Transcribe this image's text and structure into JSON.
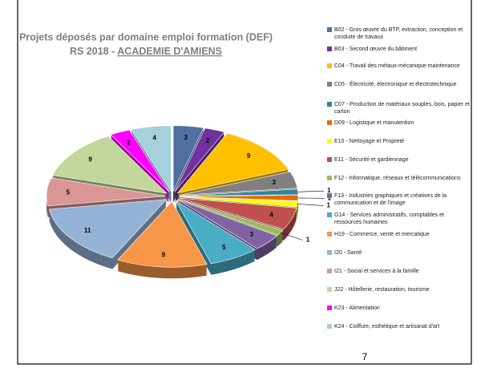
{
  "chart_data": {
    "type": "pie",
    "title": "Projets déposés par domaine emploi formation (DEF)",
    "subtitle": [
      "RS 2018 -",
      "ACADEMIE D'AMIENS"
    ],
    "categories": [
      "B02 - Gros œuvre du BTP, extraction, conception et conduite de travaux",
      "B03 - Second œuvre du bâtiment",
      "C04 - Travail des métaux-mécanique-maintenance",
      "C05 - Électricité, électronique et électrotechnique",
      "C07 - Production de matériaux souples, bois, papier et carton",
      "D09 - Logistique et manutention",
      "E10 - Nettoyage et Propreté",
      "E11 - Sécurité et gardiennage",
      "F12 - Informatique, réseaux et télécommunications",
      "F13 - Industries graphiques et créatives de la communication et de l'image",
      "G14 - Services administratifs, comptables et ressources humaines",
      "H19 - Commerce, vente et mercatique",
      "I20 - Santé",
      "I21 - Social et services à la famille",
      "J22 - Hôtellerie, restauration, tourisme",
      "K23 - Alimentation",
      "K24 - Coiffure, esthétique et artisanat d'art"
    ],
    "values": [
      3,
      2,
      9,
      3,
      1,
      1,
      1,
      4,
      1,
      3,
      5,
      9,
      11,
      5,
      9,
      2,
      4
    ],
    "colors": [
      "#4f6fa0",
      "#7030a0",
      "#ffc000",
      "#808080",
      "#31859c",
      "#e46c0a",
      "#ffff00",
      "#c0504d",
      "#9bbb59",
      "#8064a2",
      "#4bacc6",
      "#f79646",
      "#95b3d7",
      "#d99694",
      "#c3d69b",
      "#ff00ff",
      "#a5d0dc"
    ],
    "legend": "right"
  },
  "page_number": "7"
}
